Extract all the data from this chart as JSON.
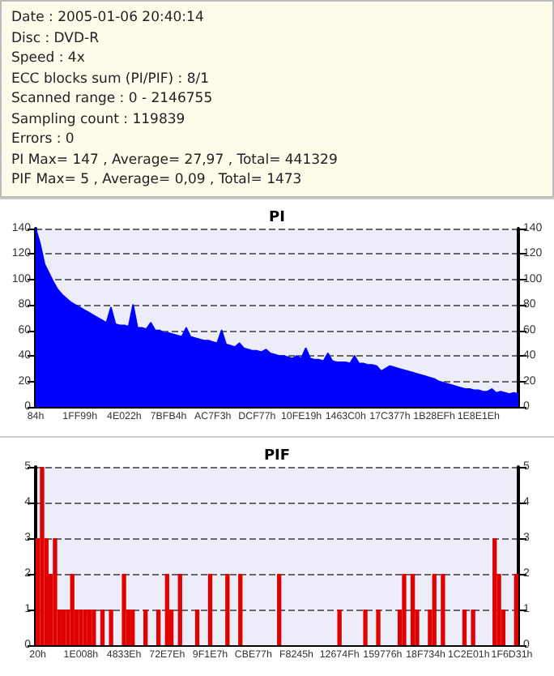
{
  "chart_data": [
    {
      "type": "other",
      "annotations": [
        "Date : 2005-01-06 20:40:14",
        "Disc : DVD-R",
        "Speed : 4x",
        "ECC blocks sum (PI/PIF) : 8/1",
        "Scanned range : 0 - 2146755",
        "Sampling count : 119839",
        "Errors : 0",
        "PI Max= 147 , Average= 27,97 , Total= 441329",
        "PIF Max= 5 , Average= 0,09 , Total= 1473"
      ]
    },
    {
      "type": "area",
      "title": "PI",
      "grid": "y",
      "ylim": [
        0,
        140
      ],
      "yticks": [
        0,
        20,
        40,
        60,
        80,
        100,
        120,
        140
      ],
      "y2lim": [
        0,
        140
      ],
      "y2ticks": [
        0,
        20,
        40,
        60,
        80,
        100,
        120,
        140
      ],
      "categories": [
        "84h",
        null,
        null,
        null,
        null,
        null,
        null,
        null,
        null,
        null,
        "1FF99h",
        null,
        null,
        null,
        null,
        null,
        null,
        null,
        null,
        null,
        "4E022h",
        null,
        null,
        null,
        null,
        null,
        null,
        null,
        null,
        null,
        "7BFB4h",
        null,
        null,
        null,
        null,
        null,
        null,
        null,
        null,
        null,
        "AC7F3h",
        null,
        null,
        null,
        null,
        null,
        null,
        null,
        null,
        null,
        "DCF77h",
        null,
        null,
        null,
        null,
        null,
        null,
        null,
        null,
        null,
        "10FE19h",
        null,
        null,
        null,
        null,
        null,
        null,
        null,
        null,
        null,
        "1463C0h",
        null,
        null,
        null,
        null,
        null,
        null,
        null,
        null,
        null,
        "17C377h",
        null,
        null,
        null,
        null,
        null,
        null,
        null,
        null,
        null,
        "1B28EFh",
        null,
        null,
        null,
        null,
        null,
        null,
        null,
        null,
        null,
        "1E8E1Eh",
        null,
        null,
        null,
        null,
        null,
        null,
        null,
        null,
        null
      ],
      "series": [
        {
          "color": "#0000ff",
          "values": [
            140,
            128,
            112,
            105,
            98,
            92,
            88,
            85,
            82,
            80,
            78,
            76,
            74,
            72,
            70,
            68,
            66,
            78,
            65,
            64,
            64,
            63,
            80,
            62,
            62,
            61,
            66,
            60,
            60,
            58,
            58,
            57,
            56,
            55,
            62,
            55,
            54,
            53,
            52,
            52,
            51,
            50,
            60,
            49,
            48,
            47,
            50,
            46,
            45,
            44,
            44,
            43,
            45,
            42,
            41,
            40,
            40,
            39,
            38,
            40,
            38,
            46,
            38,
            37,
            37,
            36,
            42,
            36,
            35,
            35,
            35,
            34,
            40,
            34,
            34,
            33,
            33,
            32,
            28,
            30,
            32,
            31,
            30,
            29,
            28,
            27,
            26,
            25,
            24,
            23,
            22,
            20,
            19,
            18,
            17,
            16,
            15,
            14,
            14,
            13,
            13,
            12,
            12,
            14,
            11,
            12,
            11,
            10,
            11,
            10
          ]
        }
      ]
    },
    {
      "type": "bar",
      "title": "PIF",
      "grid": "y",
      "ylim": [
        0,
        5
      ],
      "yticks": [
        0,
        1,
        2,
        3,
        4,
        5
      ],
      "y2lim": [
        0,
        5
      ],
      "y2ticks": [
        0,
        1,
        2,
        3,
        4,
        5
      ],
      "categories": [
        "20h",
        null,
        null,
        null,
        null,
        null,
        null,
        null,
        null,
        null,
        "1E008h",
        null,
        null,
        null,
        null,
        null,
        null,
        null,
        null,
        null,
        "4833Eh",
        null,
        null,
        null,
        null,
        null,
        null,
        null,
        null,
        null,
        "72E7Eh",
        null,
        null,
        null,
        null,
        null,
        null,
        null,
        null,
        null,
        "9F1E7h",
        null,
        null,
        null,
        null,
        null,
        null,
        null,
        null,
        null,
        "CBE77h",
        null,
        null,
        null,
        null,
        null,
        null,
        null,
        null,
        null,
        "F8245h",
        null,
        null,
        null,
        null,
        null,
        null,
        null,
        null,
        null,
        "12674Fh",
        null,
        null,
        null,
        null,
        null,
        null,
        null,
        null,
        null,
        "159776h",
        null,
        null,
        null,
        null,
        null,
        null,
        null,
        null,
        null,
        "18F734h",
        null,
        null,
        null,
        null,
        null,
        null,
        null,
        null,
        null,
        "1C2E01h",
        null,
        null,
        null,
        null,
        null,
        null,
        null,
        null,
        null,
        "1F6D31h",
        null
      ],
      "series": [
        {
          "color": "#e00000",
          "values": [
            3,
            5,
            3,
            2,
            3,
            1,
            1,
            1,
            2,
            1,
            1,
            1,
            1,
            1,
            0,
            1,
            0,
            1,
            0,
            0,
            2,
            1,
            1,
            0,
            0,
            1,
            0,
            0,
            1,
            0,
            2,
            1,
            0,
            2,
            0,
            0,
            0,
            1,
            0,
            0,
            2,
            0,
            0,
            0,
            2,
            0,
            0,
            2,
            0,
            0,
            0,
            0,
            0,
            0,
            0,
            0,
            2,
            0,
            0,
            0,
            0,
            0,
            0,
            0,
            0,
            0,
            0,
            0,
            0,
            0,
            1,
            0,
            0,
            0,
            0,
            0,
            1,
            0,
            0,
            1,
            0,
            0,
            0,
            0,
            1,
            2,
            0,
            2,
            1,
            0,
            0,
            1,
            2,
            0,
            2,
            0,
            0,
            0,
            0,
            1,
            0,
            1,
            0,
            0,
            0,
            0,
            3,
            2,
            1,
            0,
            0,
            2
          ]
        }
      ]
    }
  ]
}
